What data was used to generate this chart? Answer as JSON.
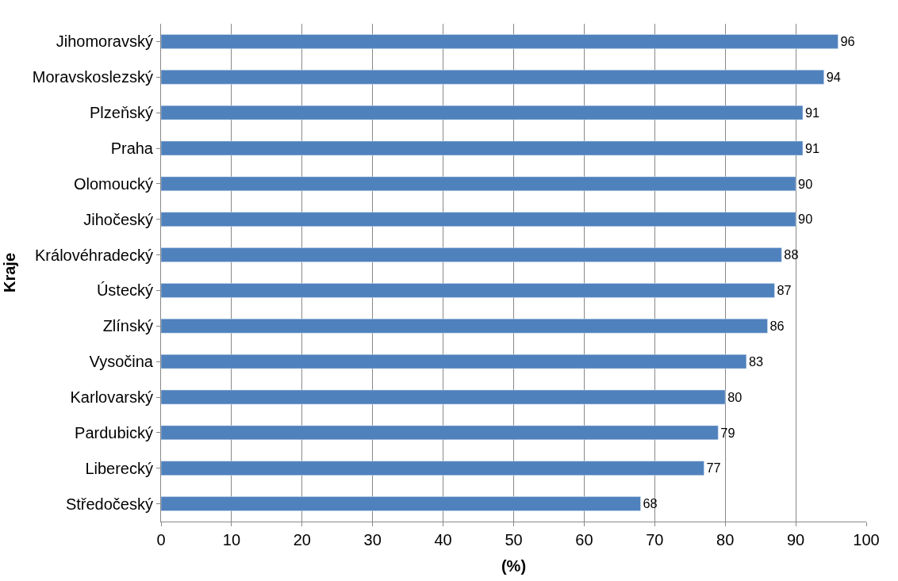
{
  "chart_data": {
    "type": "bar",
    "orientation": "horizontal",
    "categories": [
      "Jihomoravský",
      "Moravskoslezský",
      "Plzeňský",
      "Praha",
      "Olomoucký",
      "Jihočeský",
      "Královéhradecký",
      "Ústecký",
      "Zlínský",
      "Vysočina",
      "Karlovarský",
      "Pardubický",
      "Liberecký",
      "Středočeský"
    ],
    "values": [
      96,
      94,
      91,
      91,
      90,
      90,
      88,
      87,
      86,
      83,
      80,
      79,
      77,
      68
    ],
    "color": "#4f81bd",
    "xlim": [
      0,
      100
    ],
    "xticks": [
      0,
      10,
      20,
      30,
      40,
      50,
      60,
      70,
      80,
      90,
      100
    ],
    "xlabel": "(%)",
    "ylabel": "Kraje",
    "grid": "x",
    "data_labels": true
  }
}
